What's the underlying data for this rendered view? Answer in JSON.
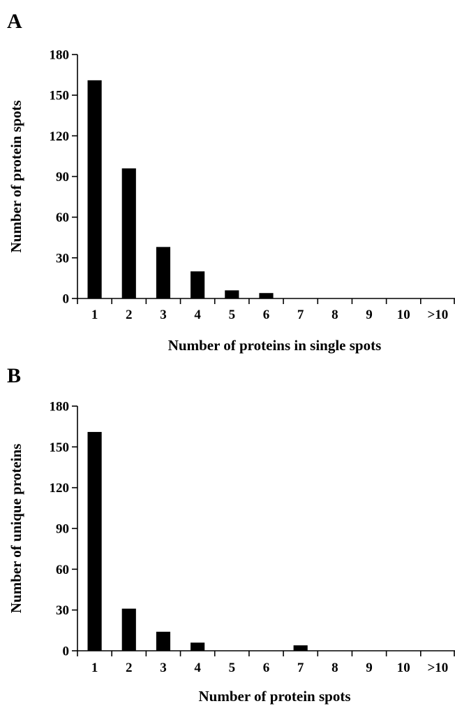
{
  "chart_data": [
    {
      "panel_label": "A",
      "type": "bar",
      "categories": [
        "1",
        "2",
        "3",
        "4",
        "5",
        "6",
        "7",
        "8",
        "9",
        "10",
        ">10"
      ],
      "values": [
        161,
        96,
        38,
        20,
        6,
        4,
        0,
        0,
        0,
        0,
        0
      ],
      "xlabel": "Number of proteins in single spots",
      "ylabel": "Number of protein spots",
      "ylim": [
        0,
        180
      ],
      "yticks": [
        "0",
        "30",
        "60",
        "90",
        "120",
        "150",
        "180"
      ],
      "bar_color": "#000000",
      "grid": false
    },
    {
      "panel_label": "B",
      "type": "bar",
      "categories": [
        "1",
        "2",
        "3",
        "4",
        "5",
        "6",
        "7",
        "8",
        "9",
        "10",
        ">10"
      ],
      "values": [
        161,
        31,
        14,
        6,
        0,
        0,
        4,
        0,
        0,
        0,
        0
      ],
      "xlabel": "Number of protein spots",
      "ylabel": "Number of unique proteins",
      "ylim": [
        0,
        180
      ],
      "yticks": [
        "0",
        "30",
        "60",
        "90",
        "120",
        "150",
        "180"
      ],
      "bar_color": "#000000",
      "grid": false
    }
  ]
}
